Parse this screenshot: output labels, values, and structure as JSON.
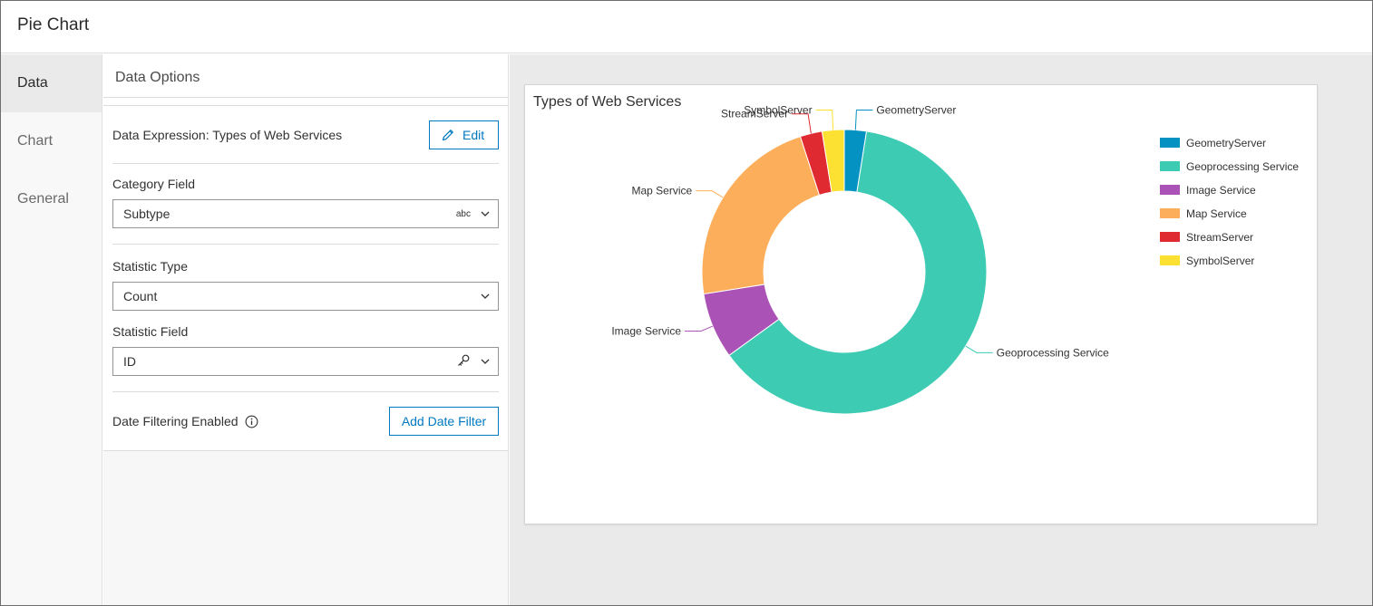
{
  "window": {
    "title": "Pie Chart"
  },
  "nav": [
    {
      "label": "Data",
      "active": true
    },
    {
      "label": "Chart",
      "active": false
    },
    {
      "label": "General",
      "active": false
    }
  ],
  "panel": {
    "header": "Data Options",
    "expression_label": "Data Expression: Types of Web Services",
    "edit_label": "Edit",
    "category": {
      "label": "Category Field",
      "value": "Subtype",
      "type_badge": "abc"
    },
    "statistic_type": {
      "label": "Statistic Type",
      "value": "Count"
    },
    "statistic_field": {
      "label": "Statistic Field",
      "value": "ID"
    },
    "date_filter": {
      "label": "Date Filtering Enabled",
      "button": "Add Date Filter"
    }
  },
  "chart_data": {
    "type": "pie",
    "title": "Types of Web Services",
    "donut": true,
    "legend_position": "top-right",
    "series": [
      {
        "name": "GeometryServer",
        "value": 2.5,
        "color": "#0392c2"
      },
      {
        "name": "Geoprocessing Service",
        "value": 62.5,
        "color": "#3ecbb4"
      },
      {
        "name": "Image Service",
        "value": 7.5,
        "color": "#aa52b5"
      },
      {
        "name": "Map Service",
        "value": 22.5,
        "color": "#fdae5a"
      },
      {
        "name": "StreamServer",
        "value": 2.5,
        "color": "#df2a32"
      },
      {
        "name": "SymbolServer",
        "value": 2.5,
        "color": "#fde132"
      }
    ]
  }
}
